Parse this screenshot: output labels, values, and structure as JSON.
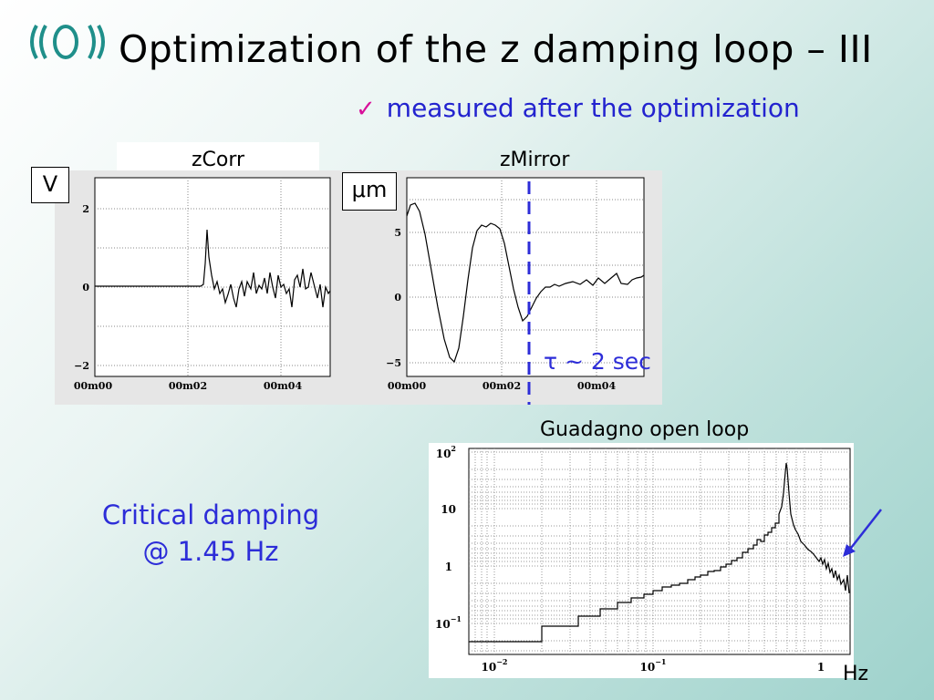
{
  "slide": {
    "title": "Optimization of the z damping loop – III",
    "subtitle_check": "✓",
    "subtitle": "measured after the optimization",
    "logo_icon": "virgo-logo-icon",
    "colors": {
      "title": "#000000",
      "accent_blue": "#2d2dd8",
      "check": "#d8109a",
      "trace": "#000000"
    }
  },
  "plots": {
    "zcorr": {
      "label": "zCorr",
      "unit": "V",
      "y_ticks": [
        "2",
        "0",
        "−2"
      ],
      "x_ticks": [
        "00m00",
        "00m02",
        "00m04"
      ]
    },
    "zmirror": {
      "label": "zMirror",
      "unit": "μm",
      "y_ticks": [
        "5",
        "0",
        "−5"
      ],
      "x_ticks": [
        "00m00",
        "00m02",
        "00m04"
      ],
      "tau_label": "τ ~ 2 sec"
    },
    "openloop": {
      "label": "Guadagno open loop",
      "y_ticks": [
        {
          "base": "10",
          "exp": "2"
        },
        {
          "base": "10",
          "exp": ""
        },
        {
          "base": "1",
          "exp": ""
        },
        {
          "base": "10",
          "exp": "−1"
        }
      ],
      "x_ticks": [
        {
          "base": "10",
          "exp": "−2"
        },
        {
          "base": "10",
          "exp": "−1"
        },
        {
          "base": "1",
          "exp": ""
        }
      ],
      "x_unit": "Hz"
    }
  },
  "annotation": {
    "line1": "Critical damping",
    "line2": "@ 1.45 Hz"
  }
}
